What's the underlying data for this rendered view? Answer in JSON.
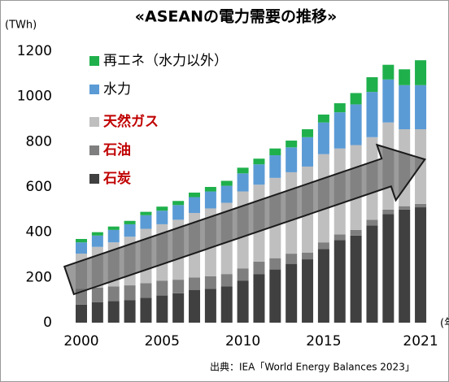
{
  "chart_data": {
    "type": "stacked_bar",
    "title": "«ASEANの電力需要の推移»",
    "y_label": "(TWh)",
    "x_label": "(年)",
    "source": "出典：IEA「World Energy Balances 2023」",
    "categories": [
      "2000",
      null,
      null,
      null,
      null,
      "2005",
      null,
      null,
      null,
      null,
      "2010",
      null,
      null,
      null,
      null,
      "2015",
      null,
      null,
      null,
      null,
      null,
      "2021"
    ],
    "ylim": [
      0,
      1200
    ],
    "yticks": [
      0,
      200,
      400,
      600,
      800,
      1000,
      1200
    ],
    "grid": false,
    "legend": "upper left",
    "series": [
      {
        "name": "石炭",
        "color": "#404040",
        "label_color": "#c00000",
        "values": [
          80,
          90,
          95,
          100,
          110,
          120,
          130,
          145,
          150,
          160,
          185,
          215,
          235,
          260,
          280,
          325,
          365,
          385,
          430,
          480,
          500,
          510
        ]
      },
      {
        "name": "石油",
        "color": "#7f7f7f",
        "label_color": "#c00000",
        "values": [
          70,
          65,
          65,
          65,
          65,
          65,
          60,
          55,
          55,
          55,
          55,
          55,
          50,
          45,
          30,
          30,
          25,
          25,
          25,
          20,
          15,
          15
        ]
      },
      {
        "name": "天然ガス",
        "color": "#bfbfbf",
        "label_color": "#c00000",
        "values": [
          155,
          180,
          195,
          215,
          240,
          250,
          265,
          285,
          300,
          315,
          340,
          340,
          355,
          360,
          380,
          390,
          380,
          375,
          365,
          385,
          340,
          330
        ]
      },
      {
        "name": "水力",
        "color": "#5b9bd5",
        "label_color": "#000000",
        "values": [
          50,
          50,
          55,
          55,
          60,
          60,
          65,
          70,
          75,
          75,
          80,
          90,
          100,
          110,
          130,
          140,
          160,
          180,
          200,
          190,
          195,
          195
        ]
      },
      {
        "name": "再エネ（水力以外）",
        "color": "#1fb04c",
        "label_color": "#000000",
        "values": [
          15,
          15,
          15,
          15,
          15,
          18,
          18,
          20,
          20,
          22,
          25,
          25,
          30,
          30,
          35,
          35,
          40,
          50,
          65,
          65,
          70,
          110
        ]
      }
    ]
  }
}
